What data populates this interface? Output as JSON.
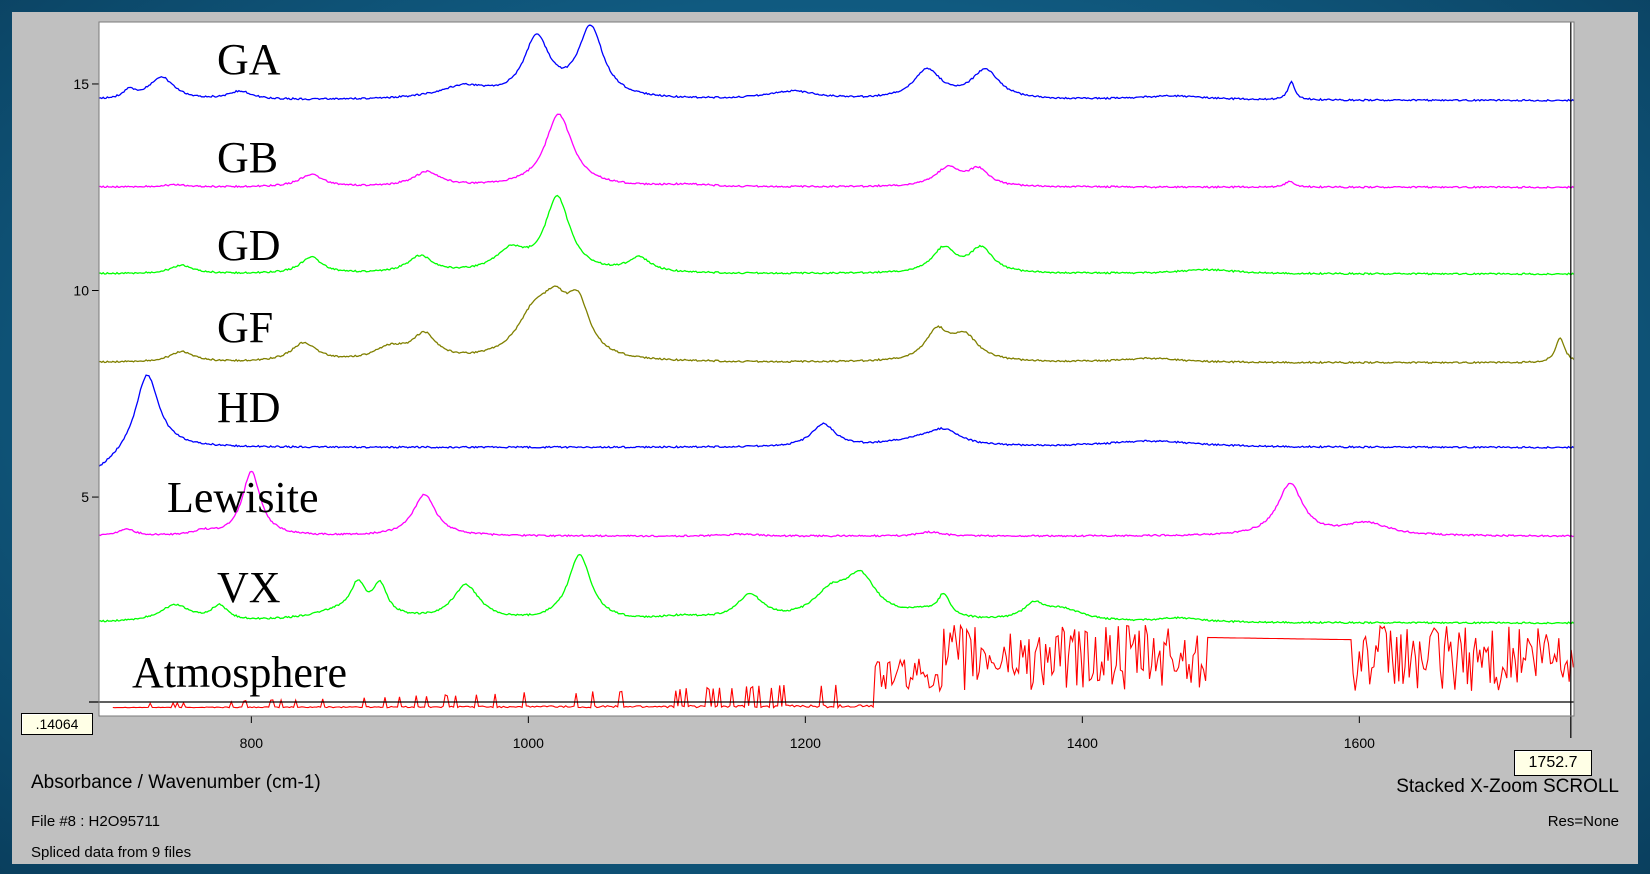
{
  "chart_data": {
    "type": "line",
    "title": "",
    "xlabel": "Absorbance / Wavenumber (cm-1)",
    "ylabel": "",
    "xlim": [
      690,
      1755
    ],
    "ylim": [
      -0.3,
      16.5
    ],
    "x_ticks": [
      800,
      1000,
      1200,
      1400,
      1600
    ],
    "y_ticks": [
      5,
      10,
      15
    ],
    "grid": false,
    "legend": "none",
    "series": [
      {
        "name": "GA",
        "color": "#0000ff",
        "baseline": 14.6,
        "peaks": [
          [
            712,
            0.2,
            5
          ],
          [
            735,
            0.55,
            11
          ],
          [
            792,
            0.2,
            10
          ],
          [
            953,
            0.3,
            22
          ],
          [
            1006,
            1.45,
            11
          ],
          [
            1045,
            1.7,
            11
          ],
          [
            1190,
            0.2,
            22
          ],
          [
            1288,
            0.7,
            12
          ],
          [
            1330,
            0.7,
            12
          ],
          [
            1465,
            0.1,
            30
          ],
          [
            1551,
            0.45,
            3
          ]
        ]
      },
      {
        "name": "GB",
        "color": "#ff00ff",
        "baseline": 12.5,
        "peaks": [
          [
            745,
            0.05,
            12
          ],
          [
            843,
            0.3,
            10
          ],
          [
            927,
            0.35,
            12
          ],
          [
            1022,
            1.75,
            12
          ],
          [
            1115,
            0.05,
            20
          ],
          [
            1303,
            0.45,
            11
          ],
          [
            1325,
            0.4,
            9
          ],
          [
            1550,
            0.15,
            4
          ]
        ]
      },
      {
        "name": "GD",
        "color": "#00ff00",
        "baseline": 10.4,
        "peaks": [
          [
            750,
            0.2,
            10
          ],
          [
            843,
            0.4,
            9
          ],
          [
            922,
            0.4,
            11
          ],
          [
            987,
            0.5,
            13
          ],
          [
            1021,
            1.8,
            11
          ],
          [
            1080,
            0.35,
            10
          ],
          [
            1300,
            0.6,
            10
          ],
          [
            1327,
            0.6,
            10
          ],
          [
            1490,
            0.1,
            25
          ]
        ]
      },
      {
        "name": "GF",
        "color": "#808000",
        "baseline": 8.25,
        "peaks": [
          [
            750,
            0.25,
            11
          ],
          [
            838,
            0.45,
            11
          ],
          [
            900,
            0.3,
            14
          ],
          [
            925,
            0.6,
            11
          ],
          [
            1005,
            1.1,
            16
          ],
          [
            1020,
            0.9,
            11
          ],
          [
            1036,
            1.2,
            10
          ],
          [
            1295,
            0.7,
            10
          ],
          [
            1315,
            0.6,
            12
          ],
          [
            1450,
            0.1,
            25
          ],
          [
            1745,
            0.6,
            4
          ]
        ]
      },
      {
        "name": "HD",
        "color": "#0000ff",
        "baseline": 6.2,
        "peaks": [
          [
            725,
            1.75,
            10
          ],
          [
            1213,
            0.55,
            10
          ],
          [
            1300,
            0.35,
            14
          ],
          [
            1280,
            0.15,
            25
          ],
          [
            1450,
            0.15,
            40
          ]
        ]
      },
      {
        "name": "Lewisite",
        "color": "#ff00ff",
        "baseline": 4.05,
        "peaks": [
          [
            710,
            0.15,
            8
          ],
          [
            765,
            0.1,
            8
          ],
          [
            800,
            1.55,
            8
          ],
          [
            925,
            1.0,
            10
          ],
          [
            1155,
            0.05,
            15
          ],
          [
            1290,
            0.1,
            10
          ],
          [
            1550,
            1.25,
            11
          ],
          [
            1605,
            0.3,
            20
          ]
        ]
      },
      {
        "name": "VX",
        "color": "#00ff00",
        "baseline": 1.95,
        "peaks": [
          [
            745,
            0.4,
            14
          ],
          [
            777,
            0.35,
            7
          ],
          [
            870,
            0.3,
            30
          ],
          [
            877,
            0.65,
            6
          ],
          [
            893,
            0.7,
            6
          ],
          [
            955,
            0.85,
            12
          ],
          [
            1037,
            1.6,
            10
          ],
          [
            1110,
            0.1,
            20
          ],
          [
            1160,
            0.6,
            12
          ],
          [
            1218,
            0.6,
            15
          ],
          [
            1240,
            1.0,
            14
          ],
          [
            1300,
            0.5,
            5
          ],
          [
            1285,
            0.2,
            20
          ],
          [
            1365,
            0.35,
            9
          ],
          [
            1385,
            0.3,
            18
          ],
          [
            1470,
            0.1,
            20
          ]
        ]
      }
    ],
    "labels": [
      "GA",
      "GB",
      "GD",
      "GF",
      "HD",
      "Lewisite",
      "VX",
      "Atmosphere"
    ],
    "atmosphere": {
      "name": "Atmosphere",
      "color": "#ff0000",
      "baseline": -0.1,
      "plateau_from": 1490,
      "plateau_to": 1595,
      "plateau_level": 1.6
    },
    "cursor_x": 1752.7,
    "cursor_y_readout": ".14064"
  },
  "footer": {
    "x_axis_title": "Absorbance / Wavenumber (cm-1)",
    "mode": "Stacked X-Zoom SCROLL",
    "file": "File #8 : H2O95711",
    "res": "Res=None",
    "splice": "Spliced data from 9 files"
  },
  "readouts": {
    "y_value": ".14064",
    "x_value": "1752.7"
  }
}
